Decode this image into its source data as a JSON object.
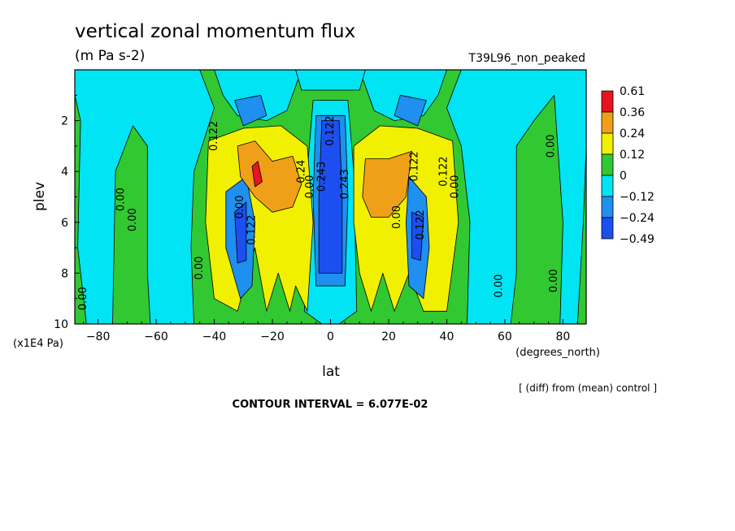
{
  "chart_data": {
    "type": "heatmap",
    "title": "vertical zonal momentum flux",
    "units": "(m Pa s-2)",
    "run_label": "T39L96_non_peaked",
    "xlabel": "lat",
    "x_units": "(degrees_north)",
    "ylabel": "plev",
    "y_units": "(x1E4 Pa)",
    "xlim": [
      -88,
      88
    ],
    "ylim": [
      0,
      10
    ],
    "y_inverted": true,
    "x_ticks": [
      -80,
      -60,
      -40,
      -20,
      0,
      20,
      40,
      60,
      80
    ],
    "x_tick_labels": [
      "−80",
      "−60",
      "−40",
      "−20",
      "0",
      "20",
      "40",
      "60",
      "80"
    ],
    "y_ticks": [
      2,
      4,
      6,
      8,
      10
    ],
    "y_tick_labels": [
      "2",
      "4",
      "6",
      "8",
      "10"
    ],
    "colorbar": {
      "labels": [
        "0.61",
        "0.36",
        "0.24",
        "0.12",
        "0",
        "−0.12",
        "−0.24",
        "−0.49"
      ],
      "colors": [
        "#e8141e",
        "#f0a018",
        "#f0f000",
        "#32c832",
        "#00e4f4",
        "#1f8ff0",
        "#1d4ff0"
      ]
    },
    "fill_colors": {
      "red": "#e8141e",
      "orange": "#f0a018",
      "yellow": "#f0f000",
      "green": "#32c832",
      "cyan": "#00e4f4",
      "mid_blue": "#1f8ff0",
      "dark_blue": "#1d4ff0"
    },
    "regions": [
      {
        "name": "background-green",
        "level": "green",
        "points": [
          [
            -88,
            0
          ],
          [
            88,
            0
          ],
          [
            88,
            10
          ],
          [
            -88,
            10
          ]
        ]
      },
      {
        "name": "cyan-south",
        "level": "cyan",
        "points": [
          [
            -88,
            0
          ],
          [
            -45,
            0
          ],
          [
            -40,
            1.5
          ],
          [
            -47,
            4
          ],
          [
            -48,
            7
          ],
          [
            -47,
            10
          ],
          [
            -62,
            10
          ],
          [
            -63,
            8
          ],
          [
            -63,
            3
          ],
          [
            -68,
            2.2
          ],
          [
            -74,
            4
          ],
          [
            -75,
            10
          ],
          [
            -84,
            10
          ],
          [
            -87,
            7
          ],
          [
            -86,
            2
          ],
          [
            -88,
            1
          ]
        ]
      },
      {
        "name": "cyan-north",
        "level": "cyan",
        "points": [
          [
            88,
            0
          ],
          [
            45,
            0
          ],
          [
            40,
            1.5
          ],
          [
            45,
            3
          ],
          [
            48,
            6
          ],
          [
            47,
            10
          ],
          [
            62,
            10
          ],
          [
            64,
            8
          ],
          [
            64,
            3
          ],
          [
            70,
            2
          ],
          [
            77,
            1
          ],
          [
            80,
            6
          ],
          [
            79,
            10
          ],
          [
            85,
            10
          ],
          [
            87,
            6
          ],
          [
            88,
            3
          ]
        ]
      },
      {
        "name": "cyan-south-top",
        "level": "cyan",
        "points": [
          [
            -40,
            0
          ],
          [
            -10,
            0
          ],
          [
            -15,
            1.6
          ],
          [
            -22,
            2
          ],
          [
            -32,
            1.8
          ],
          [
            -37,
            1
          ]
        ]
      },
      {
        "name": "cyan-north-top",
        "level": "cyan",
        "points": [
          [
            40,
            0
          ],
          [
            10,
            0
          ],
          [
            15,
            1.6
          ],
          [
            22,
            2
          ],
          [
            32,
            1.8
          ],
          [
            37,
            1
          ]
        ]
      },
      {
        "name": "cyan-equator",
        "level": "cyan",
        "points": [
          [
            -6,
            1.2
          ],
          [
            6,
            1.2
          ],
          [
            8,
            4
          ],
          [
            9,
            9.5
          ],
          [
            3,
            10
          ],
          [
            -3,
            10
          ],
          [
            -9,
            9.5
          ],
          [
            -8,
            4
          ]
        ]
      },
      {
        "name": "cyan-upper-strip",
        "level": "cyan",
        "points": [
          [
            -12,
            0
          ],
          [
            12,
            0
          ],
          [
            10,
            0.8
          ],
          [
            -10,
            0.8
          ]
        ]
      },
      {
        "name": "midblue-south-upper",
        "level": "mid_blue",
        "points": [
          [
            -33,
            1.2
          ],
          [
            -24,
            1
          ],
          [
            -22,
            1.8
          ],
          [
            -30,
            2.2
          ]
        ]
      },
      {
        "name": "midblue-north-upper",
        "level": "mid_blue",
        "points": [
          [
            24,
            1
          ],
          [
            33,
            1.2
          ],
          [
            30,
            2.2
          ],
          [
            22,
            1.8
          ]
        ]
      },
      {
        "name": "yellow-south",
        "level": "yellow",
        "points": [
          [
            -42,
            2.8
          ],
          [
            -30,
            2.3
          ],
          [
            -17,
            2.2
          ],
          [
            -8,
            3
          ],
          [
            -6,
            6
          ],
          [
            -8,
            9.5
          ],
          [
            -12,
            8.5
          ],
          [
            -14,
            9.5
          ],
          [
            -18,
            8
          ],
          [
            -22,
            9.5
          ],
          [
            -26,
            7
          ],
          [
            -32,
            9.5
          ],
          [
            -40,
            9
          ],
          [
            -43,
            6
          ]
        ]
      },
      {
        "name": "yellow-north",
        "level": "yellow",
        "points": [
          [
            8,
            3
          ],
          [
            17,
            2.2
          ],
          [
            30,
            2.3
          ],
          [
            42,
            2.8
          ],
          [
            44,
            6
          ],
          [
            40,
            9.5
          ],
          [
            32,
            9.5
          ],
          [
            27,
            8
          ],
          [
            22,
            9.5
          ],
          [
            18,
            8
          ],
          [
            14,
            9.5
          ],
          [
            10,
            8
          ],
          [
            8,
            6
          ]
        ]
      },
      {
        "name": "midblue-south-lower",
        "level": "mid_blue",
        "points": [
          [
            -36,
            4.8
          ],
          [
            -29,
            4.2
          ],
          [
            -26,
            6
          ],
          [
            -27,
            8.5
          ],
          [
            -31,
            9
          ],
          [
            -36,
            7
          ]
        ]
      },
      {
        "name": "midblue-north-lower",
        "level": "mid_blue",
        "points": [
          [
            27,
            4.2
          ],
          [
            33,
            5
          ],
          [
            34,
            7
          ],
          [
            32,
            9
          ],
          [
            27,
            8.5
          ],
          [
            26,
            6
          ]
        ]
      },
      {
        "name": "midblue-equator",
        "level": "mid_blue",
        "points": [
          [
            -5,
            1.8
          ],
          [
            5,
            1.8
          ],
          [
            6,
            5
          ],
          [
            5,
            8.5
          ],
          [
            -5,
            8.5
          ],
          [
            -6,
            5
          ]
        ]
      },
      {
        "name": "darkblue-south",
        "level": "dark_blue",
        "points": [
          [
            -33,
            5.6
          ],
          [
            -29,
            5.2
          ],
          [
            -29,
            7.5
          ],
          [
            -32,
            7.6
          ]
        ]
      },
      {
        "name": "darkblue-north",
        "level": "dark_blue",
        "points": [
          [
            28,
            5.6
          ],
          [
            32,
            5.8
          ],
          [
            31,
            7.5
          ],
          [
            28,
            7.4
          ]
        ]
      },
      {
        "name": "darkblue-equator",
        "level": "dark_blue",
        "points": [
          [
            -3,
            2
          ],
          [
            3,
            2
          ],
          [
            4,
            5
          ],
          [
            4,
            8
          ],
          [
            -4,
            8
          ],
          [
            -4,
            5
          ]
        ]
      },
      {
        "name": "orange-south",
        "level": "orange",
        "points": [
          [
            -32,
            3
          ],
          [
            -26,
            2.8
          ],
          [
            -20,
            3.6
          ],
          [
            -13,
            3.4
          ],
          [
            -10,
            4.5
          ],
          [
            -13,
            5.4
          ],
          [
            -20,
            5.6
          ],
          [
            -26,
            5
          ],
          [
            -31,
            4.2
          ]
        ]
      },
      {
        "name": "orange-north",
        "level": "orange",
        "points": [
          [
            12,
            3.5
          ],
          [
            20,
            3.5
          ],
          [
            28,
            3.2
          ],
          [
            26,
            5
          ],
          [
            20,
            5.8
          ],
          [
            14,
            5.8
          ],
          [
            11,
            5
          ]
        ]
      },
      {
        "name": "red-south",
        "level": "red",
        "points": [
          [
            -27,
            3.8
          ],
          [
            -25,
            3.6
          ],
          [
            -23.5,
            4.4
          ],
          [
            -26,
            4.6
          ]
        ]
      }
    ],
    "contour_labels": [
      {
        "text": "0.122",
        "lat": -40,
        "p": 2.6,
        "rot": -90
      },
      {
        "text": "0.00",
        "lat": -72,
        "p": 5.1,
        "rot": -90
      },
      {
        "text": "0.00",
        "lat": -68,
        "p": 5.9,
        "rot": -90
      },
      {
        "text": "0.00",
        "lat": -45,
        "p": 7.8,
        "rot": -90
      },
      {
        "text": "0.00",
        "lat": -85,
        "p": 9.0,
        "rot": -90
      },
      {
        "text": "0.00",
        "lat": -31,
        "p": 5.4,
        "rot": -90
      },
      {
        "text": "0.122",
        "lat": -27,
        "p": 6.3,
        "rot": -90
      },
      {
        "text": "0.24",
        "lat": -10,
        "p": 4.0,
        "rot": -90
      },
      {
        "text": "0.00",
        "lat": -7,
        "p": 4.6,
        "rot": -90
      },
      {
        "text": "0.122",
        "lat": 0,
        "p": 2.4,
        "rot": -90
      },
      {
        "text": "0.243",
        "lat": -3,
        "p": 4.2,
        "rot": -90
      },
      {
        "text": "0.243",
        "lat": 5,
        "p": 4.5,
        "rot": -90
      },
      {
        "text": "0.122",
        "lat": 29,
        "p": 3.8,
        "rot": -90
      },
      {
        "text": "0.00",
        "lat": 23,
        "p": 5.8,
        "rot": -90
      },
      {
        "text": "0.122",
        "lat": 31,
        "p": 6.1,
        "rot": -90
      },
      {
        "text": "0.122",
        "lat": 39,
        "p": 4.0,
        "rot": -90
      },
      {
        "text": "0.00",
        "lat": 43,
        "p": 4.6,
        "rot": -90
      },
      {
        "text": "0.00",
        "lat": 76,
        "p": 3.0,
        "rot": -90
      },
      {
        "text": "0.00",
        "lat": 58,
        "p": 8.5,
        "rot": -90
      },
      {
        "text": "0.00",
        "lat": 77,
        "p": 8.3,
        "rot": -90
      }
    ]
  },
  "footer": {
    "note": "[ (diff) from (mean) control ]",
    "contour_interval": "CONTOUR INTERVAL = 6.077E-02"
  }
}
